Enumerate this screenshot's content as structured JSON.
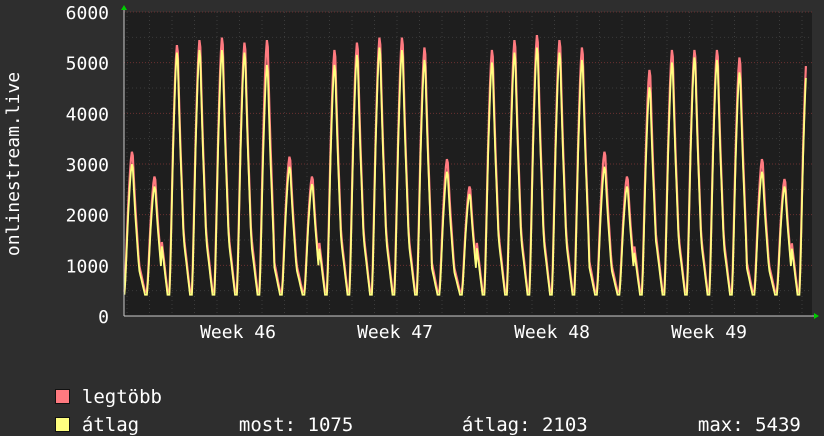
{
  "chart_data": {
    "type": "area",
    "ylabel": "onlinestream.live",
    "ylim": [
      0,
      6000
    ],
    "yticks": [
      0,
      1000,
      2000,
      3000,
      4000,
      5000,
      6000
    ],
    "x_ticks": [
      "Week 46",
      "Week 47",
      "Week 48",
      "Week 49"
    ],
    "daily_peaks_max": [
      3300,
      2800,
      5450,
      5550,
      5600,
      5500,
      5550,
      3200,
      2800,
      5350,
      5500,
      5600,
      5600,
      5400,
      3150,
      2600,
      5350,
      5550,
      5650,
      5550,
      5400,
      3300,
      2800,
      4950,
      5350,
      5350,
      5350,
      5200,
      3150,
      2750,
      5300
    ],
    "daily_peaks_avg": [
      3050,
      2600,
      5300,
      5350,
      5350,
      5300,
      5050,
      3000,
      2650,
      5050,
      5250,
      5400,
      5350,
      5150,
      2900,
      2450,
      5100,
      5300,
      5400,
      5300,
      5150,
      3000,
      2600,
      4600,
      5100,
      5200,
      5150,
      4900,
      2900,
      2600,
      5050
    ],
    "series": [
      {
        "name": "legtöbb",
        "color": "#ff7a80"
      },
      {
        "name": "átlag",
        "color": "#ffff80"
      }
    ]
  },
  "legend": {
    "max_label": "legtöbb",
    "avg_label": "átlag",
    "now_label": "most:",
    "now_value": "1075",
    "avgstat_label": "átlag:",
    "avgstat_value": "2103",
    "maxstat_label": "max:",
    "maxstat_value": "5439"
  }
}
